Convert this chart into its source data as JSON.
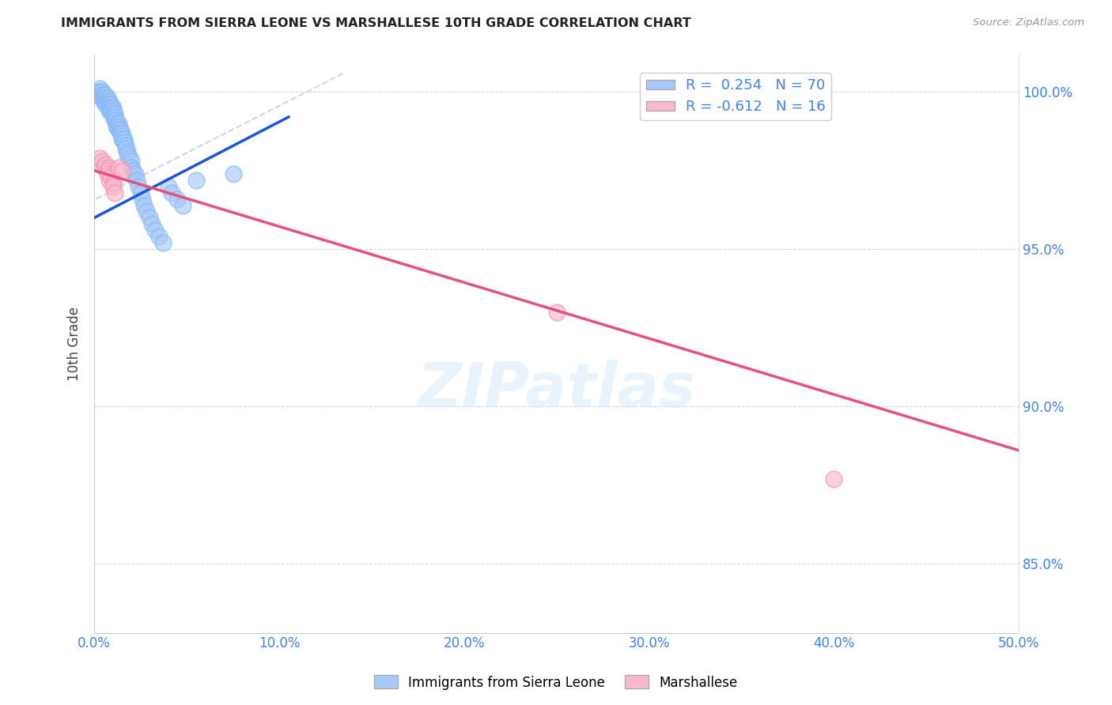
{
  "title": "IMMIGRANTS FROM SIERRA LEONE VS MARSHALLESE 10TH GRADE CORRELATION CHART",
  "source": "Source: ZipAtlas.com",
  "ylabel": "10th Grade",
  "watermark": "ZIPatlas",
  "xmin": 0.0,
  "xmax": 0.5,
  "ymin": 0.828,
  "ymax": 1.012,
  "yticks": [
    0.85,
    0.9,
    0.95,
    1.0
  ],
  "ytick_labels": [
    "85.0%",
    "90.0%",
    "95.0%",
    "100.0%"
  ],
  "xticks": [
    0.0,
    0.1,
    0.2,
    0.3,
    0.4,
    0.5
  ],
  "xtick_labels": [
    "0.0%",
    "10.0%",
    "20.0%",
    "30.0%",
    "40.0%",
    "50.0%"
  ],
  "blue_R": 0.254,
  "blue_N": 70,
  "pink_R": -0.612,
  "pink_N": 16,
  "blue_color": "#a8c8f8",
  "blue_edge_color": "#7eb8f7",
  "blue_line_color": "#1a56db",
  "pink_color": "#f9b8cc",
  "pink_edge_color": "#f590aa",
  "pink_line_color": "#e8507a",
  "diag_line_color": "#c8d8e8",
  "legend_label_blue": "Immigrants from Sierra Leone",
  "legend_label_pink": "Marshallese",
  "blue_scatter_x": [
    0.001,
    0.002,
    0.003,
    0.003,
    0.004,
    0.004,
    0.004,
    0.005,
    0.005,
    0.005,
    0.006,
    0.006,
    0.006,
    0.006,
    0.007,
    0.007,
    0.007,
    0.008,
    0.008,
    0.008,
    0.008,
    0.009,
    0.009,
    0.009,
    0.01,
    0.01,
    0.01,
    0.01,
    0.011,
    0.011,
    0.011,
    0.012,
    0.012,
    0.012,
    0.013,
    0.013,
    0.013,
    0.014,
    0.014,
    0.015,
    0.015,
    0.015,
    0.016,
    0.016,
    0.017,
    0.017,
    0.018,
    0.018,
    0.019,
    0.02,
    0.02,
    0.021,
    0.022,
    0.023,
    0.024,
    0.025,
    0.026,
    0.027,
    0.028,
    0.03,
    0.031,
    0.033,
    0.035,
    0.037,
    0.04,
    0.042,
    0.045,
    0.048,
    0.055,
    0.075
  ],
  "blue_scatter_y": [
    0.999,
    1.0,
    1.001,
    1.0,
    1.0,
    0.999,
    0.998,
    0.999,
    0.998,
    0.997,
    0.999,
    0.998,
    0.997,
    0.996,
    0.998,
    0.997,
    0.996,
    0.997,
    0.996,
    0.995,
    0.994,
    0.996,
    0.995,
    0.994,
    0.995,
    0.994,
    0.993,
    0.992,
    0.993,
    0.992,
    0.991,
    0.991,
    0.99,
    0.989,
    0.99,
    0.989,
    0.988,
    0.988,
    0.987,
    0.987,
    0.986,
    0.985,
    0.985,
    0.984,
    0.983,
    0.982,
    0.981,
    0.98,
    0.979,
    0.978,
    0.976,
    0.975,
    0.974,
    0.972,
    0.97,
    0.968,
    0.966,
    0.964,
    0.962,
    0.96,
    0.958,
    0.956,
    0.954,
    0.952,
    0.97,
    0.968,
    0.966,
    0.964,
    0.972,
    0.974
  ],
  "pink_scatter_x": [
    0.003,
    0.004,
    0.005,
    0.006,
    0.007,
    0.007,
    0.008,
    0.008,
    0.009,
    0.01,
    0.01,
    0.011,
    0.013,
    0.015,
    0.25,
    0.4
  ],
  "pink_scatter_y": [
    0.979,
    0.978,
    0.976,
    0.977,
    0.975,
    0.974,
    0.972,
    0.976,
    0.973,
    0.971,
    0.97,
    0.968,
    0.976,
    0.975,
    0.93,
    0.877
  ],
  "blue_trendline_x": [
    0.0,
    0.105
  ],
  "blue_trendline_y": [
    0.96,
    0.992
  ],
  "pink_trendline_x": [
    0.0,
    0.5
  ],
  "pink_trendline_y": [
    0.975,
    0.886
  ],
  "diagonal_line_x": [
    0.001,
    0.135
  ],
  "diagonal_line_y": [
    0.966,
    1.006
  ]
}
